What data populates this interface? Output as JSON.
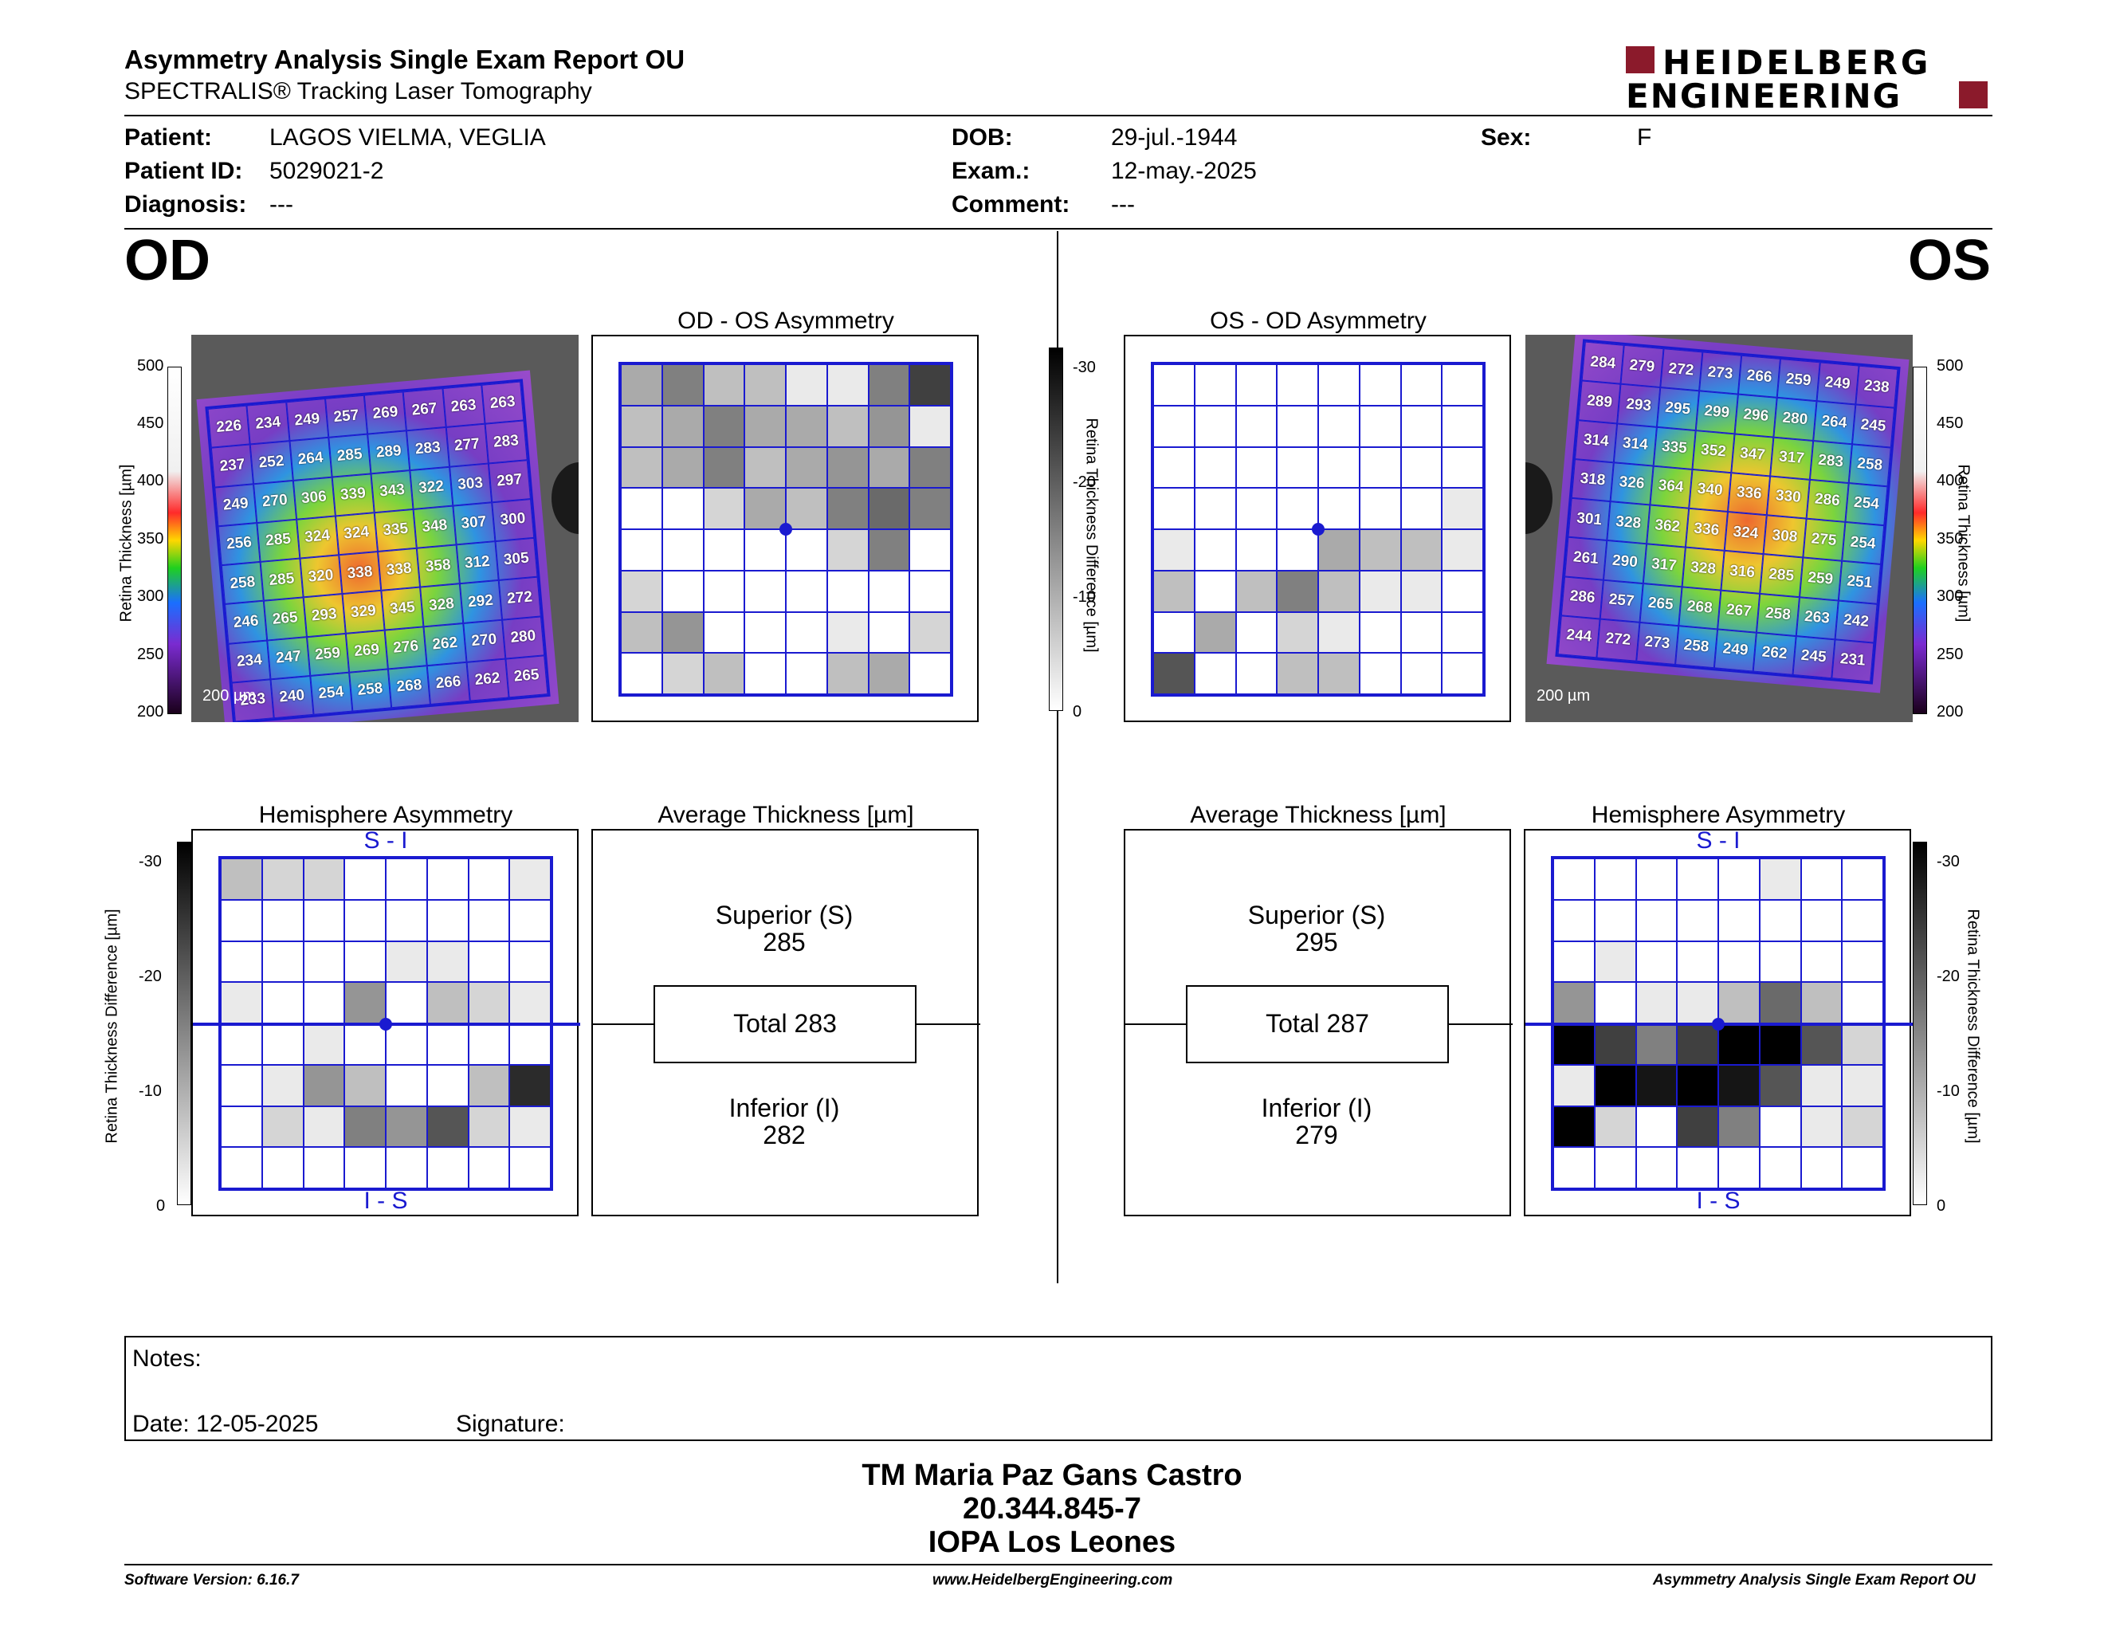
{
  "header": {
    "title": "Asymmetry Analysis Single Exam Report OU",
    "subtitle": "SPECTRALIS® Tracking Laser Tomography",
    "logo_line1": "HEIDELBERG",
    "logo_line2": "ENGINEERING"
  },
  "patient": {
    "patient_label": "Patient:",
    "patient_value": "LAGOS VIELMA, VEGLIA",
    "id_label": "Patient ID:",
    "id_value": "5029021-2",
    "diag_label": "Diagnosis:",
    "diag_value": "---",
    "dob_label": "DOB:",
    "dob_value": "29-jul.-1944",
    "exam_label": "Exam.:",
    "exam_value": "12-may.-2025",
    "comment_label": "Comment:",
    "comment_value": "---",
    "sex_label": "Sex:",
    "sex_value": "F"
  },
  "eyes": {
    "od": "OD",
    "os": "OS"
  },
  "panels": {
    "od_os_asym": "OD - OS Asymmetry",
    "os_od_asym": "OS - OD Asymmetry",
    "hemi": "Hemisphere Asymmetry",
    "avg": "Average Thickness [µm]",
    "si": "S - I",
    "is": "I - S",
    "scale": "200 µm"
  },
  "axes": {
    "retina_thickness": "Retina  Thickness [µm]",
    "retina_diff": "Retina Thickness Difference [µm]",
    "thick_ticks": [
      "500",
      "450",
      "400",
      "350",
      "300",
      "250",
      "200"
    ],
    "diff_ticks": [
      "-30",
      "-20",
      "-10",
      "0"
    ]
  },
  "od_avg": {
    "sup_label": "Superior (S)",
    "sup_value": "285",
    "total": "Total 283",
    "inf_label": "Inferior (I)",
    "inf_value": "282"
  },
  "os_avg": {
    "sup_label": "Superior (S)",
    "sup_value": "295",
    "total": "Total 287",
    "inf_label": "Inferior (I)",
    "inf_value": "279"
  },
  "od_thickness": [
    [
      226,
      234,
      249,
      257,
      269,
      267,
      263,
      263
    ],
    [
      237,
      252,
      264,
      285,
      289,
      283,
      277,
      283
    ],
    [
      249,
      270,
      306,
      339,
      343,
      322,
      303,
      297
    ],
    [
      256,
      285,
      324,
      324,
      335,
      348,
      307,
      300
    ],
    [
      258,
      285,
      320,
      338,
      338,
      358,
      312,
      305
    ],
    [
      246,
      265,
      293,
      329,
      345,
      328,
      292,
      272
    ],
    [
      234,
      247,
      259,
      269,
      276,
      262,
      270,
      280
    ],
    [
      233,
      240,
      254,
      258,
      268,
      266,
      262,
      265
    ]
  ],
  "os_thickness": [
    [
      284,
      279,
      272,
      273,
      266,
      259,
      249,
      238
    ],
    [
      289,
      293,
      295,
      299,
      296,
      280,
      264,
      245
    ],
    [
      314,
      314,
      335,
      352,
      347,
      317,
      283,
      258
    ],
    [
      318,
      326,
      364,
      340,
      336,
      330,
      286,
      254
    ],
    [
      301,
      328,
      362,
      336,
      324,
      308,
      275,
      254
    ],
    [
      261,
      290,
      317,
      328,
      316,
      285,
      259,
      251
    ],
    [
      286,
      257,
      265,
      268,
      267,
      258,
      263,
      242
    ],
    [
      244,
      272,
      273,
      258,
      249,
      262,
      245,
      231
    ]
  ],
  "od_os_gray": [
    [
      4,
      6,
      3,
      3,
      1,
      1,
      6,
      9
    ],
    [
      3,
      4,
      6,
      4,
      4,
      3,
      5,
      1
    ],
    [
      3,
      4,
      6,
      3,
      4,
      5,
      4,
      6
    ],
    [
      0,
      0,
      2,
      4,
      3,
      6,
      7,
      6
    ],
    [
      0,
      0,
      0,
      0,
      0,
      2,
      6,
      0
    ],
    [
      2,
      0,
      0,
      0,
      0,
      0,
      0,
      0
    ],
    [
      3,
      5,
      0,
      0,
      0,
      1,
      0,
      2
    ],
    [
      0,
      2,
      3,
      0,
      0,
      3,
      4,
      0
    ]
  ],
  "os_od_gray": [
    [
      0,
      0,
      0,
      0,
      0,
      0,
      0,
      0
    ],
    [
      0,
      0,
      0,
      0,
      0,
      0,
      0,
      0
    ],
    [
      0,
      0,
      0,
      0,
      0,
      0,
      0,
      0
    ],
    [
      0,
      0,
      0,
      0,
      0,
      0,
      0,
      1
    ],
    [
      1,
      0,
      0,
      0,
      4,
      3,
      3,
      1
    ],
    [
      3,
      0,
      3,
      6,
      3,
      1,
      1,
      0
    ],
    [
      0,
      4,
      0,
      2,
      1,
      0,
      0,
      0
    ],
    [
      8,
      0,
      0,
      3,
      3,
      0,
      0,
      0
    ]
  ],
  "od_hemi_gray": [
    [
      3,
      2,
      2,
      0,
      0,
      0,
      0,
      1
    ],
    [
      0,
      0,
      0,
      0,
      0,
      0,
      0,
      0
    ],
    [
      0,
      0,
      0,
      0,
      1,
      1,
      0,
      0
    ],
    [
      1,
      0,
      0,
      5,
      0,
      3,
      2,
      1
    ],
    [
      0,
      0,
      1,
      0,
      0,
      0,
      0,
      0
    ],
    [
      0,
      1,
      5,
      3,
      0,
      0,
      3,
      10
    ],
    [
      0,
      2,
      1,
      6,
      5,
      8,
      2,
      1
    ],
    [
      0,
      0,
      0,
      0,
      0,
      0,
      0,
      0
    ]
  ],
  "os_hemi_gray": [
    [
      0,
      0,
      0,
      0,
      0,
      1,
      0,
      0
    ],
    [
      0,
      0,
      0,
      0,
      0,
      0,
      0,
      0
    ],
    [
      0,
      1,
      0,
      0,
      0,
      0,
      0,
      0
    ],
    [
      5,
      0,
      1,
      1,
      3,
      7,
      3,
      0
    ],
    [
      12,
      9,
      6,
      9,
      12,
      12,
      8,
      2
    ],
    [
      1,
      12,
      11,
      12,
      11,
      8,
      1,
      1
    ],
    [
      12,
      2,
      0,
      9,
      6,
      0,
      1,
      2
    ],
    [
      0,
      0,
      0,
      0,
      0,
      0,
      0,
      0
    ]
  ],
  "notes": {
    "notes_label": "Notes:",
    "date_label": "Date: 12-05-2025",
    "signature_label": "Signature:"
  },
  "signature": {
    "name": "TM Maria Paz Gans Castro",
    "rut": "20.344.845-7",
    "clinic": "IOPA Los Leones"
  },
  "footer": {
    "software": "Software Version: 6.16.7",
    "url": "www.HeidelbergEngineering.com",
    "report": "Asymmetry Analysis Single Exam Report OU"
  }
}
